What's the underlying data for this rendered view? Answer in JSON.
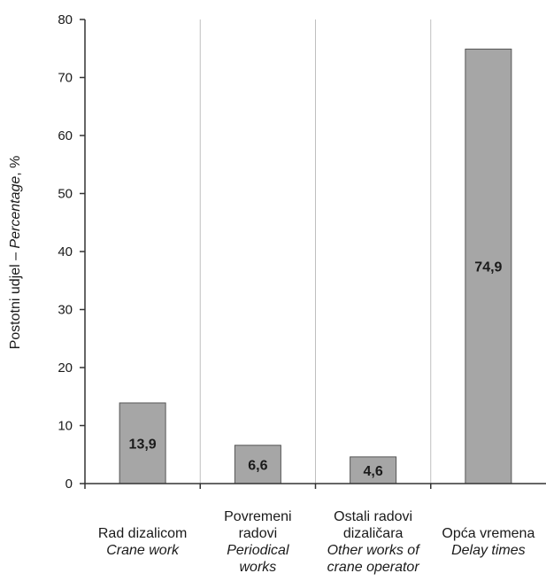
{
  "chart_data": {
    "type": "bar",
    "categories": [
      {
        "hr": [
          "Rad dizalicom"
        ],
        "en": [
          "Crane work"
        ]
      },
      {
        "hr": [
          "Povremeni",
          "radovi"
        ],
        "en": [
          "Periodical",
          "works"
        ]
      },
      {
        "hr": [
          "Ostali radovi",
          "dizaličara"
        ],
        "en": [
          "Other works of",
          "crane operator"
        ]
      },
      {
        "hr": [
          "Opća vremena"
        ],
        "en": [
          "Delay times"
        ]
      }
    ],
    "values": [
      13.9,
      6.6,
      4.6,
      74.9
    ],
    "data_labels": [
      "13,9",
      "6,6",
      "4,6",
      "74,9"
    ],
    "ylabel": {
      "normal": "Postotni udjel  –  ",
      "italic": "Percentage",
      "suffix": ", %"
    },
    "ylim": [
      0,
      80
    ],
    "yticks": [
      0,
      10,
      20,
      30,
      40,
      50,
      60,
      70,
      80
    ],
    "grid": "vertical",
    "bar_color": "#a6a6a6",
    "bar_edge_color": "#555555",
    "axis_color": "#333333",
    "grid_color": "#bfbfbf"
  }
}
